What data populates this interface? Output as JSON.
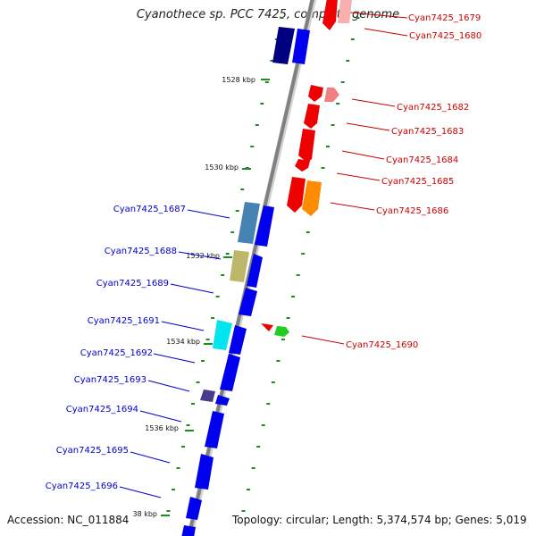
{
  "title": "Cyanothece sp. PCC 7425, complete genome",
  "accession": "Accession: NC_011884",
  "topology": "Topology: circular; Length: 5,374,574 bp; Genes: 5,019",
  "colors": {
    "left_label": "#0000cc",
    "right_label": "#cc0000",
    "tick": "#1e8c1e",
    "axis": "#888888"
  },
  "kbp_marks": [
    "1528 kbp",
    "1530 kbp",
    "1532 kbp",
    "1534 kbp",
    "1536 kbp",
    "38 kbp"
  ],
  "right_labels": [
    "Cyan7425_1679",
    "Cyan7425_1680",
    "Cyan7425_1682",
    "Cyan7425_1683",
    "Cyan7425_1684",
    "Cyan7425_1685",
    "Cyan7425_1686",
    "Cyan7425_1690"
  ],
  "left_labels": [
    "Cyan7425_1687",
    "Cyan7425_1688",
    "Cyan7425_1689",
    "Cyan7425_1691",
    "Cyan7425_1692",
    "Cyan7425_1693",
    "Cyan7425_1694",
    "Cyan7425_1695",
    "Cyan7425_1696"
  ],
  "gene_colors": {
    "navy": "#000080",
    "blue": "#0000ee",
    "red": "#ee0000",
    "pink": "#f08080",
    "orange": "#ff8c00",
    "steel": "#4682b4",
    "khaki": "#bdb76b",
    "cyan": "#00e5ee",
    "slate": "#483d8b",
    "green": "#22cc22"
  }
}
